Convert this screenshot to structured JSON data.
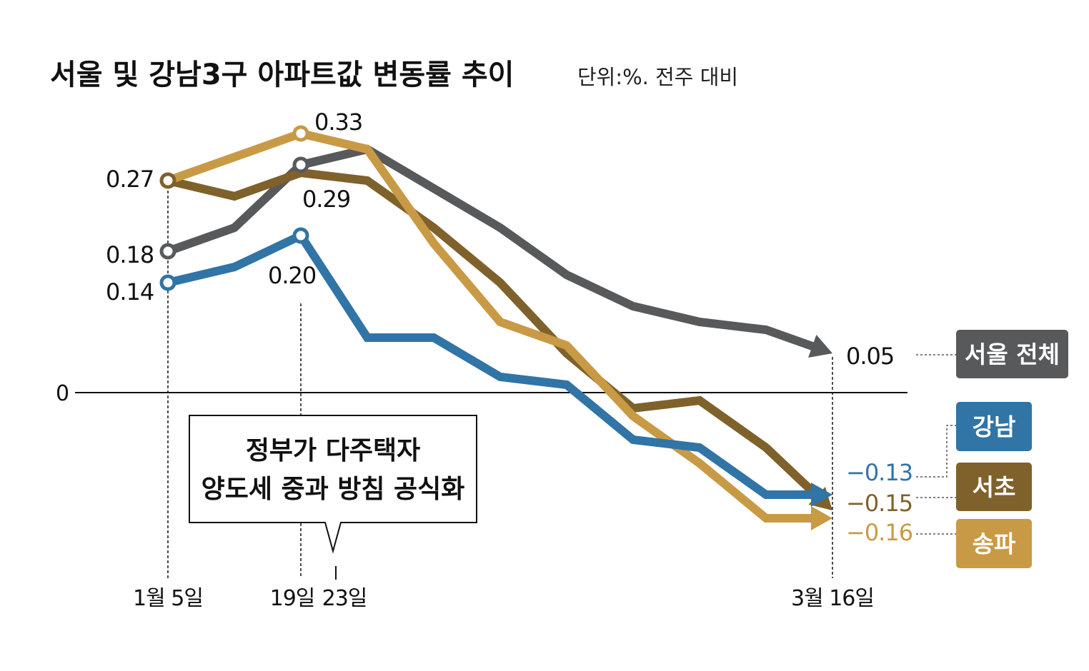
{
  "chart_data": {
    "type": "line",
    "title": "서울 및 강남3구 아파트값 변동률 추이",
    "unit": "단위:%. 전주 대비",
    "x_ticks": [
      {
        "label": "1월 5일",
        "week": 0
      },
      {
        "label": "19일",
        "week": 2
      },
      {
        "label": "23일",
        "week": 2.57
      },
      {
        "label": "3월 16일",
        "week": 10
      }
    ],
    "zero_label": "0",
    "ylim": [
      -0.2,
      0.36
    ],
    "grid": false,
    "legend_placement": "right",
    "annotation": {
      "lines": [
        "정부가 다주택자",
        "양도세 중과 방침 공식화"
      ],
      "week": 2.57
    },
    "series": [
      {
        "name": "서울 전체",
        "color": "#58595b",
        "values": [
          0.18,
          0.21,
          0.29,
          0.31,
          0.26,
          0.21,
          0.15,
          0.11,
          0.09,
          0.08,
          0.05
        ],
        "labels": {
          "0": "0.18",
          "2": "0.29",
          "10": "0.05"
        },
        "end_label_color": "#111111"
      },
      {
        "name": "강남",
        "color": "#3174a6",
        "values": [
          0.14,
          0.16,
          0.2,
          0.07,
          0.07,
          0.02,
          0.01,
          -0.06,
          -0.07,
          -0.13,
          -0.13
        ],
        "labels": {
          "0": "0.14",
          "2": "0.20",
          "10": "−0.13"
        },
        "end_label_color": "#3174a6"
      },
      {
        "name": "서초",
        "color": "#7f612b",
        "values": [
          0.27,
          0.25,
          0.28,
          0.27,
          0.21,
          0.14,
          0.05,
          -0.02,
          -0.01,
          -0.07,
          -0.15
        ],
        "labels": {
          "0": "0.27",
          "10": "−0.15"
        },
        "end_label_color": "#7f612b"
      },
      {
        "name": "송파",
        "color": "#c99a45",
        "values": [
          0.27,
          0.3,
          0.33,
          0.31,
          0.19,
          0.09,
          0.06,
          -0.03,
          -0.09,
          -0.16,
          -0.16
        ],
        "labels": {
          "2": "0.33",
          "10": "−0.16"
        },
        "end_label_color": "#c99a45"
      }
    ]
  }
}
